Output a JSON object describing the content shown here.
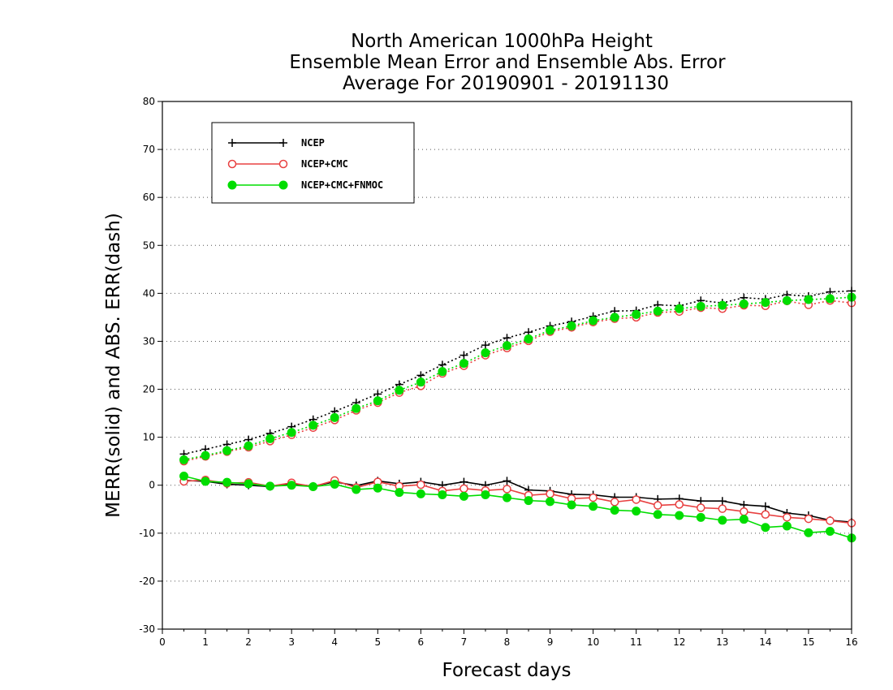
{
  "chart_data": {
    "type": "line",
    "title_lines": [
      "North American 1000hPa Height",
      "Ensemble Mean Error and Ensemble Abs. Error",
      "Average For 20190901 - 20191130"
    ],
    "xlabel": "Forecast days",
    "ylabel": "MERR(solid) and ABS. ERR(dash)",
    "xlim": [
      0,
      16
    ],
    "ylim": [
      -30,
      80
    ],
    "x_ticks": [
      "0",
      "1",
      "2",
      "3",
      "4",
      "5",
      "6",
      "7",
      "8",
      "9",
      "10",
      "11",
      "12",
      "13",
      "14",
      "15",
      "16"
    ],
    "y_ticks": [
      "-30",
      "-20",
      "-10",
      "0",
      "10",
      "20",
      "30",
      "40",
      "50",
      "60",
      "70",
      "80"
    ],
    "grid": "dotted horizontal",
    "legend_position": "top-left",
    "x": [
      0.5,
      1,
      1.5,
      2,
      2.5,
      3,
      3.5,
      4,
      4.5,
      5,
      5.5,
      6,
      6.5,
      7,
      7.5,
      8,
      8.5,
      9,
      9.5,
      10,
      10.5,
      11,
      11.5,
      12,
      12.5,
      13,
      13.5,
      14,
      14.5,
      15,
      15.5,
      16
    ],
    "series": [
      {
        "name": "NCEP",
        "color": "#000000",
        "marker": "plus",
        "merr": [
          1.0,
          0.8,
          0.2,
          0.0,
          -0.3,
          0.3,
          -0.2,
          0.7,
          -0.1,
          0.9,
          0.3,
          0.7,
          0.0,
          0.7,
          0.0,
          0.9,
          -1.0,
          -1.2,
          -1.9,
          -2.0,
          -2.5,
          -2.5,
          -2.9,
          -2.8,
          -3.3,
          -3.3,
          -4.1,
          -4.4,
          -5.8,
          -6.3,
          -7.3,
          -7.7
        ],
        "abs_err": [
          6.5,
          7.5,
          8.5,
          9.5,
          10.8,
          12.2,
          13.7,
          15.4,
          17.2,
          19.0,
          21.0,
          22.9,
          25.1,
          27.1,
          29.2,
          30.7,
          31.9,
          33.2,
          34.1,
          35.2,
          36.3,
          36.4,
          37.6,
          37.4,
          38.5,
          38.0,
          39.1,
          38.8,
          39.7,
          39.4,
          40.3,
          40.5
        ]
      },
      {
        "name": "NCEP+CMC",
        "color": "#e84040",
        "marker": "open-circle",
        "merr": [
          0.8,
          1.1,
          0.4,
          0.6,
          -0.2,
          0.5,
          -0.3,
          1.0,
          -0.5,
          0.7,
          -0.2,
          0.1,
          -1.2,
          -0.7,
          -1.1,
          -0.8,
          -2.1,
          -1.8,
          -2.8,
          -2.6,
          -3.5,
          -3.0,
          -4.2,
          -4.0,
          -4.7,
          -4.9,
          -5.5,
          -6.1,
          -6.7,
          -7.0,
          -7.4,
          -7.9
        ],
        "abs_err": [
          5.0,
          6.0,
          7.0,
          7.9,
          9.2,
          10.5,
          12.0,
          13.6,
          15.6,
          17.2,
          19.3,
          20.7,
          23.3,
          24.9,
          27.1,
          28.6,
          30.1,
          32.0,
          32.9,
          34.0,
          34.7,
          35.0,
          36.0,
          36.2,
          37.0,
          36.8,
          37.5,
          37.4,
          38.4,
          37.6,
          38.5,
          38.0
        ]
      },
      {
        "name": "NCEP+CMC+FNMOC",
        "color": "#00dd00",
        "marker": "filled-circle",
        "merr": [
          1.9,
          0.8,
          0.6,
          0.3,
          -0.2,
          0.0,
          -0.3,
          0.2,
          -0.9,
          -0.6,
          -1.5,
          -1.8,
          -2.0,
          -2.3,
          -2.0,
          -2.6,
          -3.2,
          -3.4,
          -4.1,
          -4.4,
          -5.2,
          -5.4,
          -6.1,
          -6.3,
          -6.7,
          -7.3,
          -7.1,
          -8.8,
          -8.5,
          -9.9,
          -9.6,
          -11.0
        ],
        "abs_err": [
          5.3,
          6.2,
          7.2,
          8.2,
          9.7,
          11.0,
          12.5,
          14.1,
          16.0,
          17.6,
          19.8,
          21.5,
          23.7,
          25.4,
          27.6,
          29.1,
          30.5,
          32.3,
          33.2,
          34.3,
          35.0,
          35.6,
          36.3,
          36.8,
          37.3,
          37.5,
          37.8,
          38.1,
          38.5,
          38.7,
          38.9,
          39.2
        ]
      }
    ]
  }
}
